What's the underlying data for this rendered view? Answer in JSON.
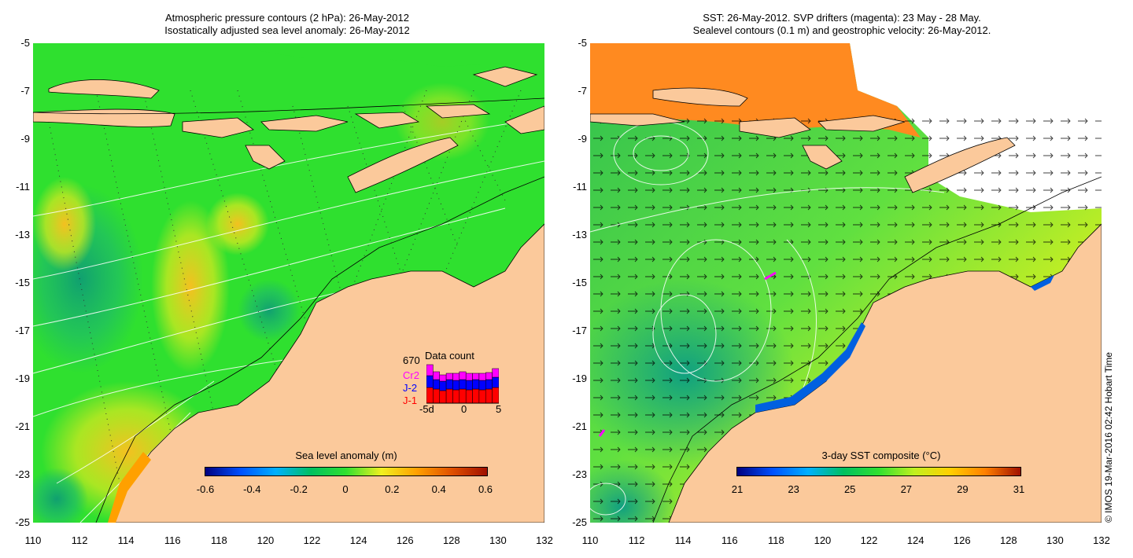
{
  "left": {
    "title_line1": "Atmospheric pressure contours (2 hPa): 26-May-2012",
    "title_line2": "Isostatically adjusted sea level anomaly: 26-May-2012",
    "colorbar_title": "Sea level anomaly (m)",
    "colorbar_ticks": [
      "-0.6",
      "-0.4",
      "-0.2",
      "0",
      "0.2",
      "0.4",
      "0.6"
    ],
    "inset": {
      "count": "670",
      "title": "Data count",
      "series": [
        {
          "name": "Cr2",
          "color": "#ff00ff"
        },
        {
          "name": "J-2",
          "color": "#0000ff"
        },
        {
          "name": "J-1",
          "color": "#ff0000"
        }
      ],
      "x_ticks": [
        "-5d",
        "0",
        "5"
      ]
    }
  },
  "right": {
    "title_line1": "SST: 26-May-2012. SVP drifters (magenta): 23 May - 28 May.",
    "title_line2": "Sealevel contours (0.1 m) and geostrophic velocity: 26-May-2012.",
    "colorbar_title": "3-day SST composite (°C)",
    "colorbar_ticks": [
      "21",
      "23",
      "25",
      "27",
      "29",
      "31"
    ]
  },
  "y_ticks": [
    "-5",
    "-7",
    "-9",
    "-11",
    "-13",
    "-15",
    "-17",
    "-19",
    "-21",
    "-23",
    "-25"
  ],
  "x_ticks": [
    "110",
    "112",
    "114",
    "116",
    "118",
    "120",
    "122",
    "124",
    "126",
    "128",
    "130",
    "132"
  ],
  "copyright": "© IMOS 19-Mar-2016 02:42 Hobart Time",
  "colors": {
    "land": "#fbc99b",
    "ocean_green": "#2fe02f",
    "sla_gradient": [
      "#000080",
      "#0050ff",
      "#00b0ff",
      "#00c060",
      "#30e030",
      "#f0f020",
      "#ffa000",
      "#e05000",
      "#a01000"
    ],
    "sst_gradient": [
      "#000080",
      "#0050ff",
      "#00b0ff",
      "#00c060",
      "#30e030",
      "#c0f020",
      "#ffd000",
      "#ff8000",
      "#a01000"
    ]
  }
}
